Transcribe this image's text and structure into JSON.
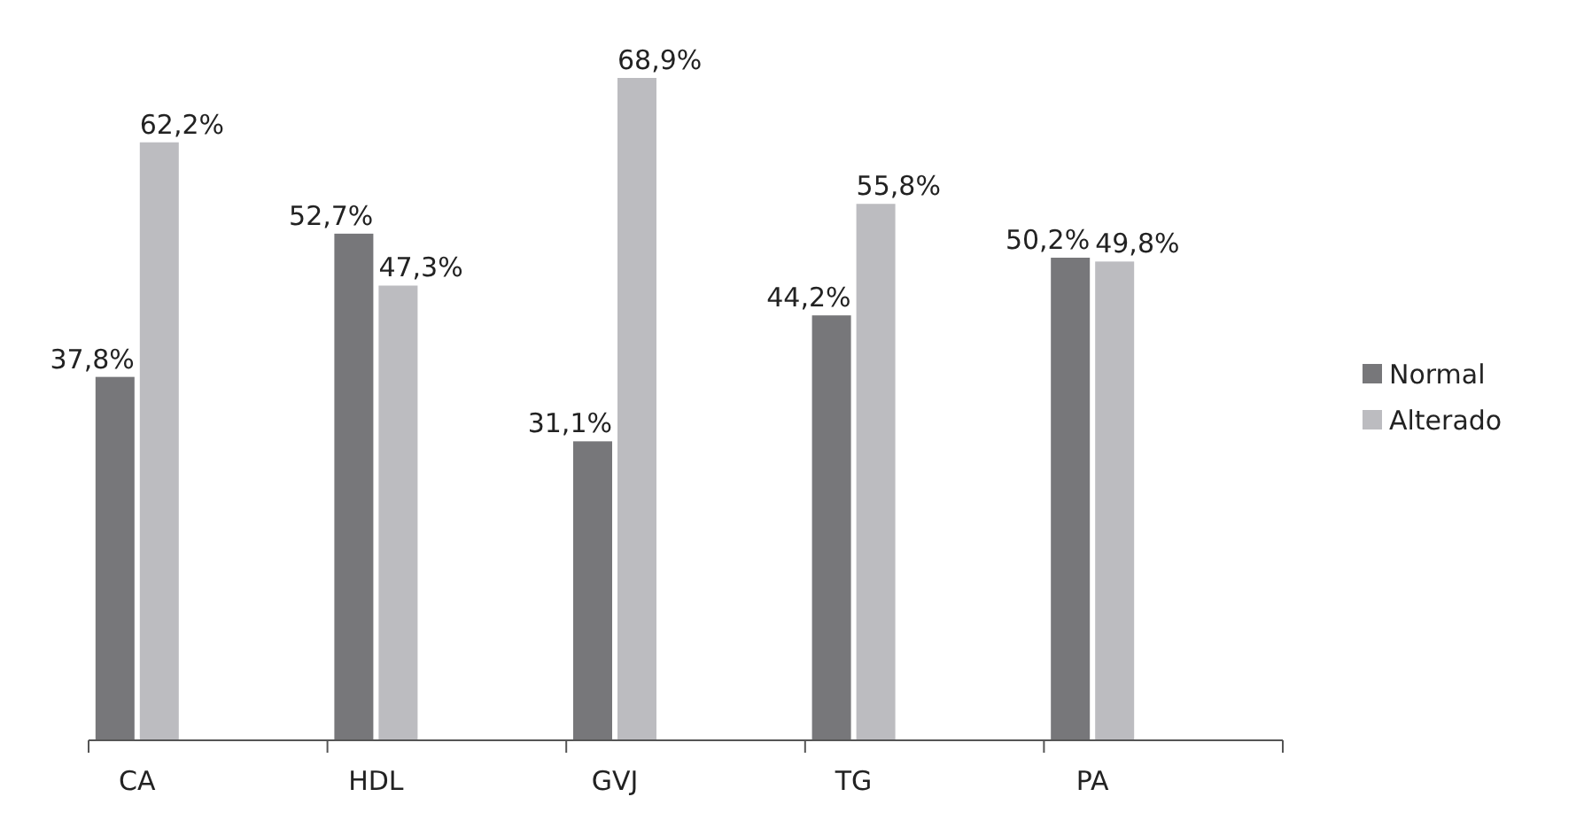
{
  "chart_data": {
    "type": "bar",
    "categories": [
      "CA",
      "HDL",
      "GVJ",
      "TG",
      "PA"
    ],
    "series": [
      {
        "name": "Normal",
        "color": "#77777a",
        "values": [
          37.8,
          52.7,
          31.1,
          44.2,
          50.2
        ],
        "value_labels": [
          "37,8%",
          "52,7%",
          "31,1%",
          "44,2%",
          "50,2%"
        ]
      },
      {
        "name": "Alterado",
        "color": "#bcbcc0",
        "values": [
          62.2,
          47.3,
          68.9,
          55.8,
          49.8
        ],
        "value_labels": [
          "62,2%",
          "47,3%",
          "68,9%",
          "55,8%",
          "49,8%"
        ]
      }
    ],
    "legend": "right"
  }
}
